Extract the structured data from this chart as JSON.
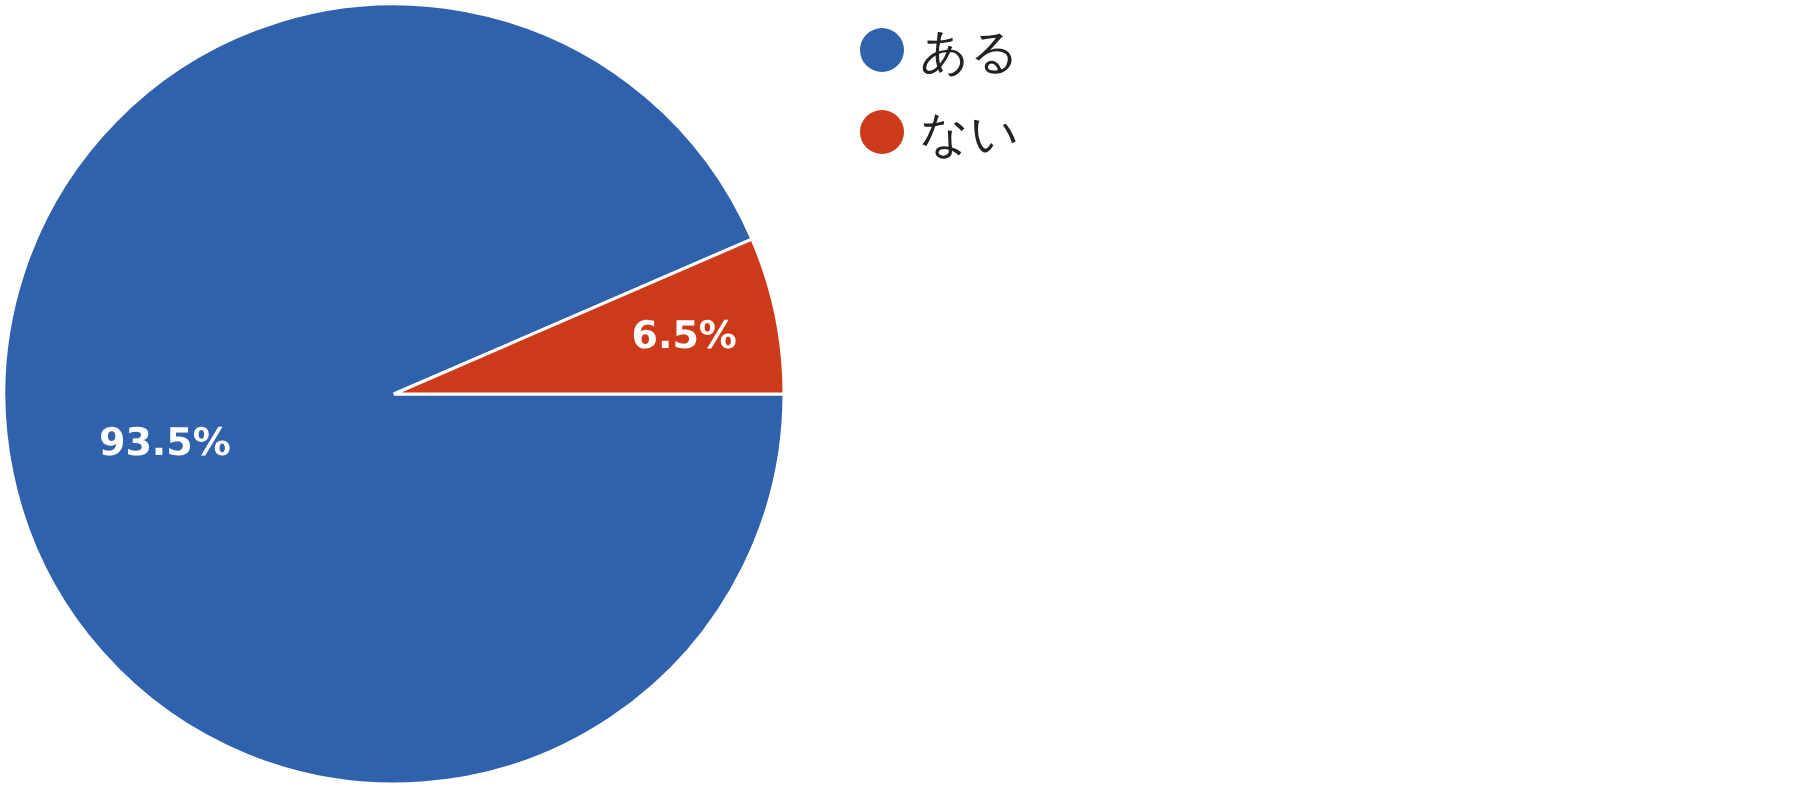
{
  "chart_data": {
    "type": "pie",
    "categories": [
      "ある",
      "ない"
    ],
    "values": [
      93.5,
      6.5
    ],
    "value_labels": [
      "93.5%",
      "6.5%"
    ],
    "colors": [
      "#3061ad",
      "#cd3a19"
    ],
    "legend": "right"
  }
}
